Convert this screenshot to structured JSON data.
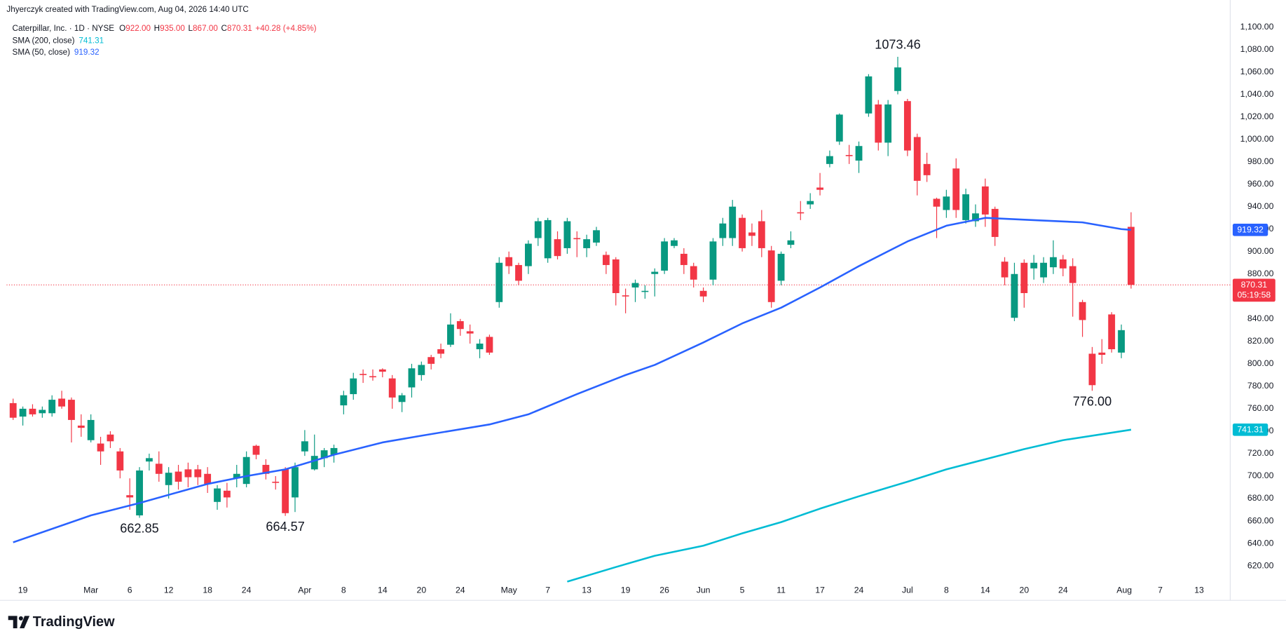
{
  "chart_data": {
    "type": "candlestick",
    "credit": "Jhyerczyk created with TradingView.com, Aug 04, 2026 14:40 UTC",
    "symbol": "Caterpillar, Inc. · 1D · NYSE",
    "ohlc": [
      {
        "key": "O",
        "value": "922.00"
      },
      {
        "key": "H",
        "value": "935.00"
      },
      {
        "key": "L",
        "value": "867.00"
      },
      {
        "key": "C",
        "value": "870.31"
      }
    ],
    "change": "+40.28 (+4.85%)",
    "countdown": "05:19:58",
    "brand": "TradingView",
    "up_color": "#089981",
    "down_color": "#f23645",
    "open": [
      765,
      753,
      760,
      756,
      756,
      769,
      768,
      745,
      732,
      729,
      737,
      722,
      683,
      665,
      713,
      711,
      692,
      704,
      706,
      706,
      702,
      677,
      687,
      698,
      693,
      727,
      710,
      695,
      706,
      681,
      722,
      706,
      716,
      719,
      763,
      773,
      791,
      789,
      795,
      787,
      766,
      779,
      790,
      806,
      813,
      817,
      838,
      829,
      813,
      824,
      855,
      895,
      888,
      887,
      912,
      894,
      911,
      903,
      912,
      903,
      908,
      897,
      893,
      861,
      868,
      864,
      880,
      883,
      905,
      898,
      887,
      865,
      875,
      912,
      912,
      930,
      917,
      927,
      901,
      874,
      906,
      935,
      942,
      957,
      978,
      998,
      986,
      981,
      1023,
      1031,
      997,
      1043,
      1034,
      1002,
      978,
      947,
      937,
      974,
      928,
      927,
      958,
      938,
      891,
      841,
      890,
      885,
      877,
      886,
      893,
      887,
      855,
      809,
      810,
      844,
      810,
      922
    ],
    "high": [
      769,
      762,
      764,
      762,
      772,
      776,
      770,
      755,
      755,
      735,
      740,
      725,
      698,
      708,
      720,
      722,
      708,
      710,
      712,
      710,
      708,
      692,
      694,
      710,
      722,
      728,
      715,
      700,
      708,
      712,
      741,
      737,
      725,
      728,
      776,
      792,
      795,
      795,
      796,
      790,
      774,
      800,
      802,
      808,
      818,
      845,
      840,
      835,
      822,
      826,
      895,
      900,
      890,
      910,
      930,
      930,
      918,
      930,
      918,
      915,
      922,
      900,
      895,
      867,
      875,
      870,
      885,
      912,
      912,
      903,
      890,
      868,
      912,
      930,
      946,
      933,
      925,
      937,
      905,
      900,
      918,
      945,
      952,
      970,
      990,
      1023,
      995,
      998,
      1058,
      1035,
      1035,
      1073.46,
      1036,
      1005,
      988,
      948,
      955,
      983,
      956,
      942,
      965,
      940,
      895,
      890,
      893,
      897,
      895,
      910,
      897,
      894,
      857,
      815,
      822,
      846,
      835,
      935
    ],
    "low": [
      750,
      745,
      753,
      752,
      753,
      760,
      730,
      735,
      730,
      710,
      725,
      698,
      670,
      662.85,
      705,
      695,
      680,
      688,
      690,
      692,
      685,
      670,
      672,
      690,
      690,
      715,
      697,
      688,
      664.57,
      668,
      718,
      705,
      708,
      712,
      755,
      768,
      783,
      785,
      788,
      760,
      757,
      770,
      785,
      795,
      805,
      815,
      825,
      818,
      805,
      808,
      850,
      880,
      870,
      880,
      905,
      890,
      893,
      898,
      895,
      895,
      905,
      880,
      852,
      845,
      855,
      858,
      860,
      880,
      903,
      880,
      868,
      855,
      870,
      905,
      905,
      900,
      905,
      895,
      850,
      870,
      903,
      928,
      938,
      950,
      975,
      995,
      978,
      970,
      1020,
      990,
      985,
      1040,
      985,
      950,
      962,
      912,
      930,
      930,
      925,
      922,
      922,
      905,
      870,
      838,
      850,
      875,
      872,
      880,
      878,
      842,
      824,
      776,
      800,
      810,
      805,
      867
    ],
    "close": [
      752,
      760,
      755,
      759,
      768,
      762,
      750,
      743,
      750,
      722,
      731,
      705,
      681,
      705,
      716,
      702,
      703,
      695,
      699,
      699,
      693,
      689,
      681,
      702,
      717,
      719,
      702,
      694,
      667,
      708,
      731,
      718,
      723,
      725,
      772,
      787,
      790,
      788,
      793,
      770,
      772,
      796,
      799,
      800,
      809,
      835,
      831,
      827,
      818,
      810,
      890,
      887,
      874,
      907,
      927,
      928,
      896,
      927,
      911,
      911,
      919,
      888,
      863,
      860,
      872,
      865,
      882,
      909,
      910,
      888,
      875,
      860,
      909,
      925,
      940,
      903,
      914,
      903,
      855,
      898,
      910,
      934,
      945,
      955,
      985,
      1022,
      985,
      994,
      1056,
      997,
      1031,
      1064,
      990,
      963,
      968,
      940,
      949,
      937,
      951,
      934,
      933,
      913,
      877,
      880,
      863,
      890,
      890,
      895,
      885,
      872,
      839,
      781,
      808,
      813,
      830,
      870.31
    ],
    "series": [
      {
        "name": "SMA (200, close)",
        "legend_value": "741.31",
        "color": "#00bcd4",
        "x": [
          57,
          62,
          66,
          71,
          75,
          79,
          83,
          87,
          92,
          96,
          100,
          104,
          108,
          115
        ],
        "values": [
          606,
          619,
          629,
          638,
          649,
          659,
          671,
          682,
          695,
          706,
          715,
          724,
          732,
          741.31
        ]
      },
      {
        "name": "SMA (50, close)",
        "legend_value": "919.32",
        "color": "#2962ff",
        "x": [
          0,
          8,
          13,
          20,
          24,
          28,
          33,
          38,
          42,
          49,
          53,
          58,
          63,
          66,
          71,
          75,
          79,
          83,
          87,
          92,
          96,
          100,
          105,
          110,
          114,
          115
        ],
        "values": [
          641,
          665,
          676,
          693,
          700,
          706,
          719,
          730,
          736,
          746,
          755,
          773,
          790,
          799,
          819,
          836,
          850,
          868,
          887,
          909,
          923,
          930,
          928,
          926,
          920,
          919.32
        ]
      }
    ],
    "annotations": [
      {
        "label": "1073.46",
        "x": 91,
        "value": 1073.46,
        "position": "above"
      },
      {
        "label": "662.85",
        "x": 13,
        "value": 662.85,
        "position": "below"
      },
      {
        "label": "664.57",
        "x": 28,
        "value": 664.57,
        "position": "below"
      },
      {
        "label": "776.00",
        "x": 111,
        "value": 776,
        "position": "below"
      }
    ],
    "xlim": [
      -0.675,
      125.2
    ],
    "xticks": [
      {
        "value": 1,
        "label": "19"
      },
      {
        "value": 8,
        "label": "Mar"
      },
      {
        "value": 12,
        "label": "6"
      },
      {
        "value": 16,
        "label": "12"
      },
      {
        "value": 20,
        "label": "18"
      },
      {
        "value": 24,
        "label": "24"
      },
      {
        "value": 30,
        "label": "Apr"
      },
      {
        "value": 34,
        "label": "8"
      },
      {
        "value": 38,
        "label": "14"
      },
      {
        "value": 42,
        "label": "20"
      },
      {
        "value": 46,
        "label": "24"
      },
      {
        "value": 51,
        "label": "May"
      },
      {
        "value": 55,
        "label": "7"
      },
      {
        "value": 59,
        "label": "13"
      },
      {
        "value": 63,
        "label": "19"
      },
      {
        "value": 67,
        "label": "26"
      },
      {
        "value": 71,
        "label": "Jun"
      },
      {
        "value": 75,
        "label": "5"
      },
      {
        "value": 79,
        "label": "11"
      },
      {
        "value": 83,
        "label": "17"
      },
      {
        "value": 87,
        "label": "24"
      },
      {
        "value": 92,
        "label": "Jul"
      },
      {
        "value": 96,
        "label": "8"
      },
      {
        "value": 100,
        "label": "14"
      },
      {
        "value": 104,
        "label": "20"
      },
      {
        "value": 108,
        "label": "24"
      },
      {
        "value": 114.3,
        "label": "Aug"
      },
      {
        "value": 118,
        "label": "7"
      },
      {
        "value": 122,
        "label": "13"
      }
    ],
    "ylim": [
      605.4,
      1103.6
    ],
    "yticks": [
      {
        "value": 620,
        "label": "620.00"
      },
      {
        "value": 640,
        "label": "640.00"
      },
      {
        "value": 660,
        "label": "660.00"
      },
      {
        "value": 680,
        "label": "680.00"
      },
      {
        "value": 700,
        "label": "700.00"
      },
      {
        "value": 720,
        "label": "720.00"
      },
      {
        "value": 740,
        "label": "740.00"
      },
      {
        "value": 760,
        "label": "760.00"
      },
      {
        "value": 780,
        "label": "780.00"
      },
      {
        "value": 800,
        "label": "800.00"
      },
      {
        "value": 820,
        "label": "820.00"
      },
      {
        "value": 840,
        "label": "840.00"
      },
      {
        "value": 860,
        "label": "860.00"
      },
      {
        "value": 880,
        "label": "880.00"
      },
      {
        "value": 900,
        "label": "900.00"
      },
      {
        "value": 920,
        "label": "920.00"
      },
      {
        "value": 940,
        "label": "940.00"
      },
      {
        "value": 960,
        "label": "960.00"
      },
      {
        "value": 980,
        "label": "980.00"
      },
      {
        "value": 1000,
        "label": "1,000.00"
      },
      {
        "value": 1020,
        "label": "1,020.00"
      },
      {
        "value": 1040,
        "label": "1,040.00"
      },
      {
        "value": 1060,
        "label": "1,060.00"
      },
      {
        "value": 1080,
        "label": "1,080.00"
      },
      {
        "value": 1100,
        "label": "1,100.00"
      }
    ],
    "grid": false
  }
}
